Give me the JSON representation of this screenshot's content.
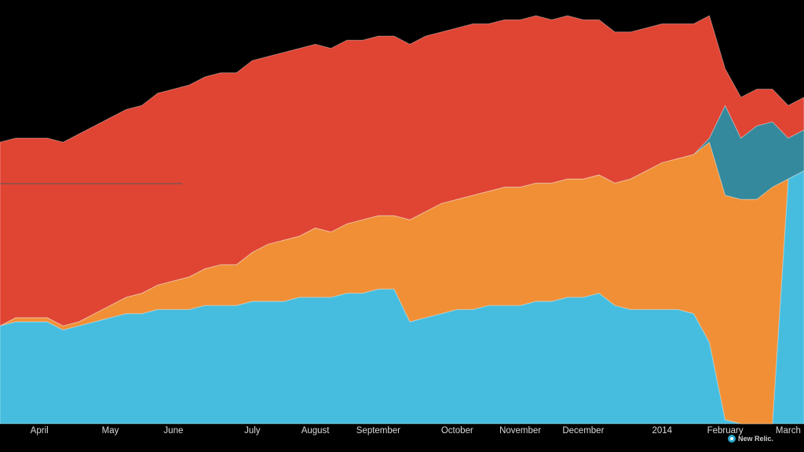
{
  "brand": {
    "name": "New Relic."
  },
  "chart_data": {
    "type": "area",
    "stacked": true,
    "title": "",
    "xlabel": "",
    "ylabel": "",
    "x_tick_labels": [
      "April",
      "May",
      "June",
      "July",
      "August",
      "September",
      "October",
      "November",
      "December",
      "2014",
      "February",
      "March"
    ],
    "x_tick_weeks": [
      2.5,
      7,
      11,
      16,
      20,
      24,
      29,
      33,
      37,
      42,
      46,
      50
    ],
    "x_range_weeks": [
      0,
      51
    ],
    "y_range": [
      0,
      100
    ],
    "grid": false,
    "legend": "none",
    "series": [
      {
        "color": "#46bddf",
        "values": [
          24,
          25,
          25,
          25,
          23,
          24,
          25,
          26,
          27,
          27,
          28,
          28,
          28,
          29,
          29,
          29,
          30,
          30,
          30,
          31,
          31,
          31,
          32,
          32,
          33,
          33,
          25,
          26,
          27,
          28,
          28,
          29,
          29,
          29,
          30,
          30,
          31,
          31,
          32,
          29,
          28,
          28,
          28,
          28,
          27,
          20,
          1,
          0,
          0,
          0,
          60,
          62
        ]
      },
      {
        "color": "#f08f35",
        "values": [
          0,
          1,
          1,
          1,
          1,
          1,
          2,
          3,
          4,
          5,
          6,
          7,
          8,
          9,
          10,
          10,
          12,
          14,
          15,
          15,
          17,
          16,
          17,
          18,
          18,
          18,
          25,
          26,
          27,
          27,
          28,
          28,
          29,
          29,
          29,
          29,
          29,
          29,
          29,
          30,
          32,
          34,
          36,
          37,
          39,
          49,
          55,
          55,
          55,
          58,
          0,
          0
        ]
      },
      {
        "color": "#34899c",
        "values": [
          0,
          0,
          0,
          0,
          0,
          0,
          0,
          0,
          0,
          0,
          0,
          0,
          0,
          0,
          0,
          0,
          0,
          0,
          0,
          0,
          0,
          0,
          0,
          0,
          0,
          0,
          0,
          0,
          0,
          0,
          0,
          0,
          0,
          0,
          0,
          0,
          0,
          0,
          0,
          0,
          0,
          0,
          0,
          0,
          0,
          1,
          22,
          15,
          18,
          16,
          10,
          10
        ]
      },
      {
        "color": "#e04433",
        "values": [
          45,
          44,
          44,
          44,
          45,
          46,
          46,
          46,
          46,
          46,
          47,
          47,
          47,
          47,
          47,
          47,
          47,
          46,
          46,
          46,
          45,
          45,
          45,
          44,
          44,
          44,
          43,
          43,
          42,
          42,
          42,
          41,
          41,
          41,
          41,
          40,
          40,
          39,
          38,
          37,
          36,
          35,
          34,
          33,
          32,
          30,
          9,
          10,
          9,
          8,
          8,
          8
        ]
      }
    ]
  }
}
